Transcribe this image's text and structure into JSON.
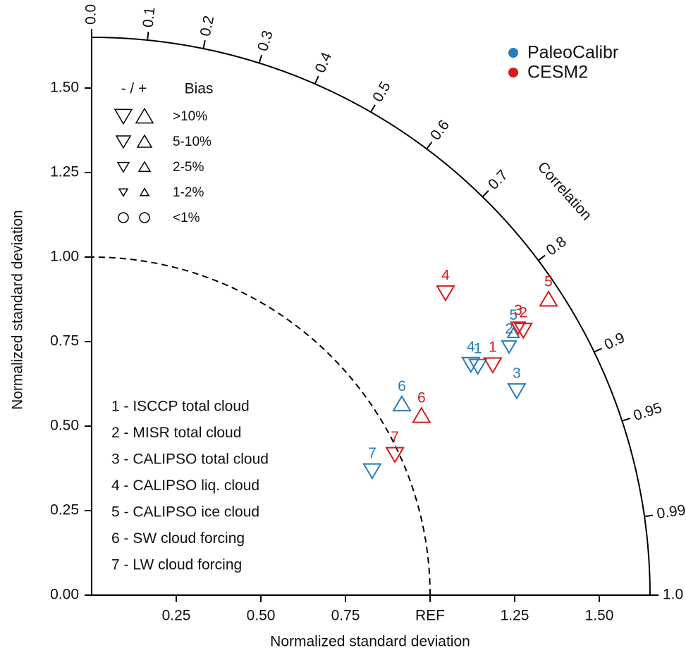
{
  "chart_data": {
    "type": "taylor",
    "xlabel": "Normalized standard deviation",
    "ylabel": "Normalized standard deviation",
    "correlation_label": "Correlation",
    "xlim": [
      0,
      1.65
    ],
    "ylim": [
      0,
      1.65
    ],
    "xticks": [
      0.25,
      {
        "value": 0.5,
        "label": "0.50"
      },
      0.75,
      {
        "value": 1,
        "label": "REF"
      },
      1.25,
      {
        "value": 1.5,
        "label": "1.50"
      }
    ],
    "yticks": [
      {
        "value": 0,
        "label": "0.00"
      },
      0.25,
      {
        "value": 0.5,
        "label": "0.50"
      },
      0.75,
      {
        "value": 1,
        "label": "1.00"
      },
      1.25,
      {
        "value": 1.5,
        "label": "1.50"
      }
    ],
    "correlation_ticks": [
      {
        "value": 0,
        "label": "0.0"
      },
      0.1,
      0.2,
      0.3,
      0.4,
      0.5,
      0.6,
      0.7,
      0.8,
      0.9,
      0.95,
      0.99,
      {
        "value": 1,
        "label": "1.0"
      }
    ],
    "reference_std": 1,
    "series": [
      {
        "name": "PaleoCalibr",
        "color": "#2b7bb9",
        "labels": [
          "1",
          "2",
          "3",
          "4",
          "5",
          "6",
          "7"
        ],
        "std": [
          1.327,
          1.436,
          1.394,
          1.312,
          1.468,
          1.077,
          0.907
        ],
        "correlation": [
          0.86,
          0.859,
          0.901,
          0.854,
          0.849,
          0.851,
          0.914
        ],
        "bias_sign": [
          "-",
          "-",
          "-",
          "-",
          "+",
          "+",
          "-"
        ],
        "bias_class": [
          ">10%",
          "5-10%",
          ">10%",
          ">10%",
          "2-5%",
          ">10%",
          ">10%"
        ]
      },
      {
        "name": "CESM2",
        "color": "#d7191c",
        "labels": [
          "1",
          "2",
          "3",
          "4",
          "5",
          "6",
          "7"
        ],
        "std": [
          1.367,
          1.497,
          1.488,
          1.376,
          1.609,
          1.11,
          0.988
        ],
        "correlation": [
          0.867,
          0.852,
          0.847,
          0.76,
          0.839,
          0.878,
          0.907
        ],
        "bias_sign": [
          "-",
          "-",
          "-",
          "-",
          "+",
          "+",
          "-"
        ],
        "bias_class": [
          ">10%",
          ">10%",
          "5-10%",
          ">10%",
          ">10%",
          ">10%",
          ">10%"
        ]
      }
    ],
    "bias_legend": {
      "sign_header": "- / +",
      "header": "Bias",
      "classes": [
        ">10%",
        "5-10%",
        "2-5%",
        "1-2%",
        "<1%"
      ]
    },
    "items": [
      "1 - ISCCP total cloud",
      "2 - MISR total cloud",
      "3 - CALIPSO total cloud",
      "4 - CALIPSO liq. cloud",
      "5 - CALIPSO ice cloud",
      "6 - SW cloud forcing",
      "7 - LW cloud forcing"
    ]
  }
}
